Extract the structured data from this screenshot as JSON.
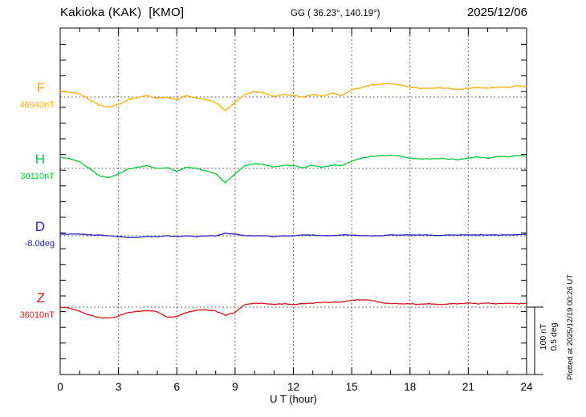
{
  "header": {
    "title": "Kakioka (KAK)  [KMO]",
    "coordinates": "GG ( 36.23°, 140.19°)",
    "date": "2025/12/06"
  },
  "scale_bar": {
    "label_nt": "100 nT",
    "label_deg": "0.5 deg"
  },
  "footer": {
    "plotted_at": "Plotted at 2025/12/19 00:26 UT"
  },
  "chart_data": {
    "type": "line",
    "title": "Kakioka (KAK) [KMO] magnetogram",
    "x_label": "U T (hour)",
    "x_range": [
      0,
      24
    ],
    "x_ticks": [
      0,
      3,
      6,
      9,
      12,
      15,
      18,
      21,
      24
    ],
    "x_minor_tick_step_hours": 1,
    "grid": "dotted vertical lines at 3-hour intervals; dotted horizontal baseline per trace",
    "scale_per_division": {
      "nT": 100,
      "deg": 0.5
    },
    "x": [
      0,
      0.5,
      1,
      1.5,
      2,
      2.5,
      3,
      3.5,
      4,
      4.5,
      5,
      5.5,
      6,
      6.5,
      7,
      7.5,
      8,
      8.5,
      9,
      9.5,
      10,
      10.5,
      11,
      11.5,
      12,
      12.5,
      13,
      13.5,
      14,
      14.5,
      15,
      15.5,
      16,
      16.5,
      17,
      17.5,
      18,
      18.5,
      19,
      19.5,
      20,
      20.5,
      21,
      21.5,
      22,
      22.5,
      23,
      23.5,
      24
    ],
    "series": [
      {
        "name": "F",
        "baseline_label": "46940nT",
        "baseline_value": 46940,
        "unit": "nT",
        "color": "#FFAA00",
        "values": [
          46948,
          46947,
          46945,
          46936,
          46928,
          46925,
          46929,
          46936,
          46940,
          46942,
          46938,
          46940,
          46936,
          46942,
          46939,
          46936,
          46932,
          46920,
          46932,
          46944,
          46948,
          46946,
          46941,
          46944,
          46942,
          46940,
          46944,
          46941,
          46946,
          46942,
          46951,
          46954,
          46958,
          46959,
          46960,
          46958,
          46955,
          46953,
          46953,
          46954,
          46953,
          46951,
          46953,
          46954,
          46953,
          46955,
          46954,
          46957,
          46955
        ]
      },
      {
        "name": "H",
        "baseline_label": "30110nT",
        "baseline_value": 30110,
        "unit": "nT",
        "color": "#00CC33",
        "values": [
          30127,
          30124,
          30120,
          30110,
          30099,
          30096,
          30102,
          30109,
          30112,
          30114,
          30110,
          30111,
          30106,
          30112,
          30110,
          30106,
          30102,
          30089,
          30102,
          30114,
          30117,
          30116,
          30112,
          30115,
          30114,
          30111,
          30115,
          30112,
          30115,
          30114,
          30121,
          30125,
          30128,
          30129,
          30130,
          30128,
          30125,
          30124,
          30124,
          30125,
          30124,
          30123,
          30125,
          30127,
          30125,
          30128,
          30127,
          30129,
          30128
        ]
      },
      {
        "name": "D",
        "baseline_label": "-8.0deg",
        "baseline_value": -8.0,
        "unit": "deg",
        "color": "#2222CC",
        "values": [
          -7.988,
          -7.988,
          -7.988,
          -7.994,
          -7.994,
          -8.0,
          -8.006,
          -8.012,
          -8.012,
          -8.006,
          -8.006,
          -8.0,
          -8.006,
          -8.0,
          -8.006,
          -8.0,
          -8.0,
          -7.982,
          -7.988,
          -8.0,
          -8.0,
          -8.0,
          -8.006,
          -8.0,
          -8.0,
          -7.994,
          -7.994,
          -8.0,
          -8.0,
          -7.994,
          -7.994,
          -8.0,
          -8.0,
          -8.0,
          -7.994,
          -7.994,
          -7.994,
          -7.994,
          -7.994,
          -8.0,
          -7.994,
          -7.994,
          -7.994,
          -7.994,
          -7.994,
          -7.994,
          -7.994,
          -7.994,
          -7.988
        ]
      },
      {
        "name": "Z",
        "baseline_label": "36010nT",
        "baseline_value": 36010,
        "unit": "nT",
        "color": "#DD1111",
        "values": [
          36010,
          36008,
          36004,
          35998,
          35995,
          35993,
          35997,
          36002,
          36004,
          36005,
          36003,
          35995,
          35996,
          36002,
          36005,
          36006,
          36004,
          35998,
          36002,
          36014,
          36016,
          36015,
          36014,
          36015,
          36014,
          36015,
          36016,
          36017,
          36017,
          36018,
          36020,
          36021,
          36020,
          36017,
          36015,
          36015,
          36015,
          36014,
          36015,
          36014,
          36015,
          36015,
          36016,
          36015,
          36016,
          36015,
          36016,
          36015,
          36016
        ]
      }
    ]
  }
}
